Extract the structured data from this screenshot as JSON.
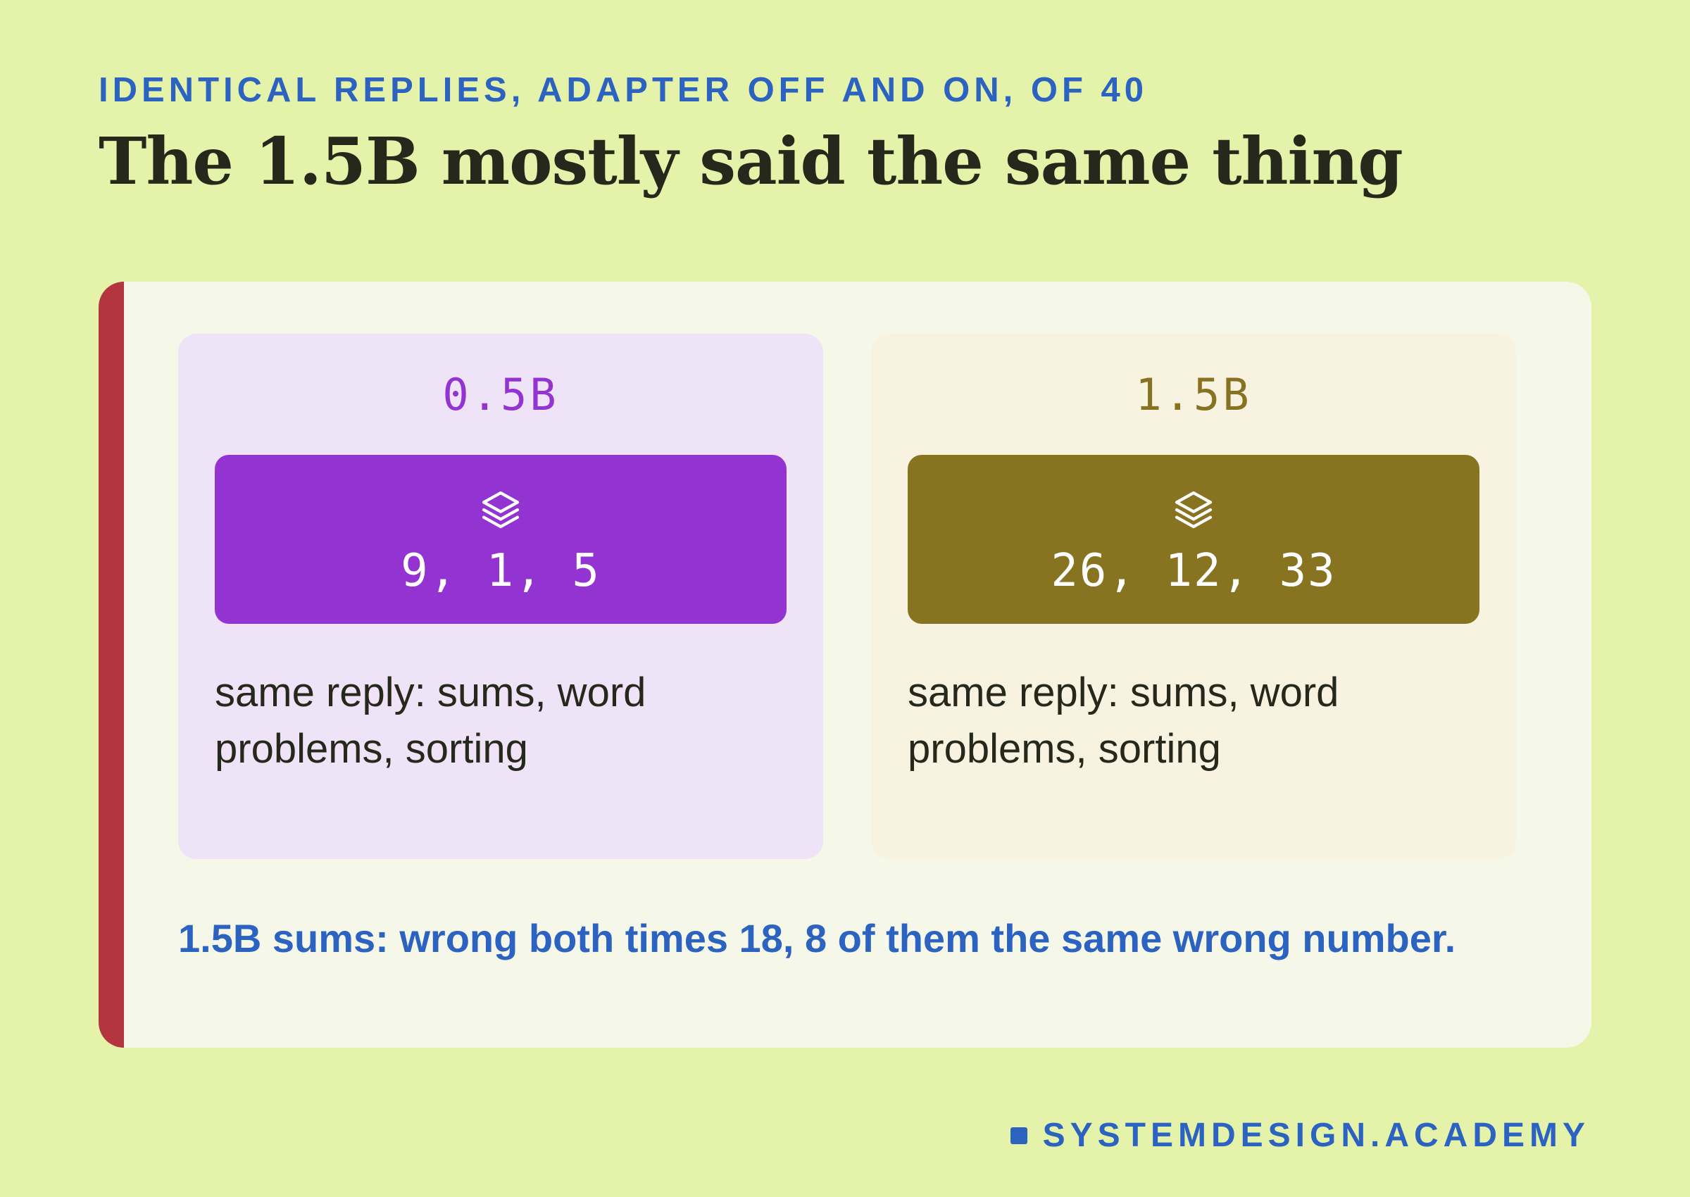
{
  "header": {
    "eyebrow": "IDENTICAL REPLIES, ADAPTER OFF AND ON, OF 40",
    "title": "The 1.5B mostly said the same thing"
  },
  "panels": [
    {
      "label": "0.5B",
      "icon": "layers-icon",
      "value": "9, 1, 5",
      "note": "same reply: sums, word problems, sorting",
      "accent": "#9333d2",
      "background": "#efe3f7"
    },
    {
      "label": "1.5B",
      "icon": "layers-icon",
      "value": "26, 12, 33",
      "note": "same reply: sums, word problems, sorting",
      "accent": "#877320",
      "background": "#f8f3e1"
    }
  ],
  "footnote": "1.5B sums: wrong both times 18, 8 of them the same wrong number.",
  "brand": {
    "text": "SYSTEMDESIGN.ACADEMY"
  },
  "colors": {
    "page_background": "#e5f2aa",
    "card_background": "#f5f7e8",
    "stripe": "#b3353f",
    "brand_blue": "#2c63c0",
    "ink": "#26281c"
  }
}
